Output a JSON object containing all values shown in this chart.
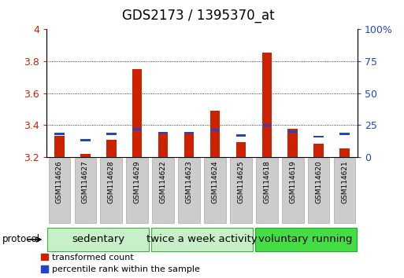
{
  "title": "GDS2173 / 1395370_at",
  "samples": [
    "GSM114626",
    "GSM114627",
    "GSM114628",
    "GSM114629",
    "GSM114622",
    "GSM114623",
    "GSM114624",
    "GSM114625",
    "GSM114618",
    "GSM114619",
    "GSM114620",
    "GSM114621"
  ],
  "red_values": [
    3.335,
    3.22,
    3.31,
    3.75,
    3.345,
    3.35,
    3.49,
    3.295,
    3.855,
    3.375,
    3.285,
    3.255
  ],
  "blue_values": [
    18,
    13,
    18,
    22,
    19,
    19,
    21,
    17,
    25,
    20,
    16,
    18
  ],
  "group_names": [
    "sedentary",
    "twice a week activity",
    "voluntary running"
  ],
  "group_sizes": [
    4,
    4,
    4
  ],
  "group_colors": [
    "#c8f0c8",
    "#c8f0c8",
    "#44dd44"
  ],
  "group_edge_colors": [
    "#44aa44",
    "#44aa44",
    "#22aa22"
  ],
  "baseline": 3.2,
  "ylim_left": [
    3.2,
    4.0
  ],
  "ylim_right": [
    0,
    100
  ],
  "yticks_left": [
    3.2,
    3.4,
    3.6,
    3.8,
    4.0
  ],
  "ytick_labels_left": [
    "3.2",
    "3.4",
    "3.6",
    "3.8",
    "4"
  ],
  "yticks_right": [
    0,
    25,
    50,
    75,
    100
  ],
  "ytick_labels_right": [
    "0",
    "25",
    "50",
    "75",
    "100%"
  ],
  "red_color": "#cc2200",
  "blue_color": "#2244cc",
  "sample_box_color": "#cccccc",
  "sample_box_edge": "#aaaaaa",
  "bg_color": "#ffffff",
  "legend_red": "transformed count",
  "legend_blue": "percentile rank within the sample",
  "protocol_label": "protocol",
  "title_fontsize": 12,
  "tick_fontsize": 9,
  "sample_tick_fontsize": 6.5,
  "group_label_fontsize": 9.5
}
